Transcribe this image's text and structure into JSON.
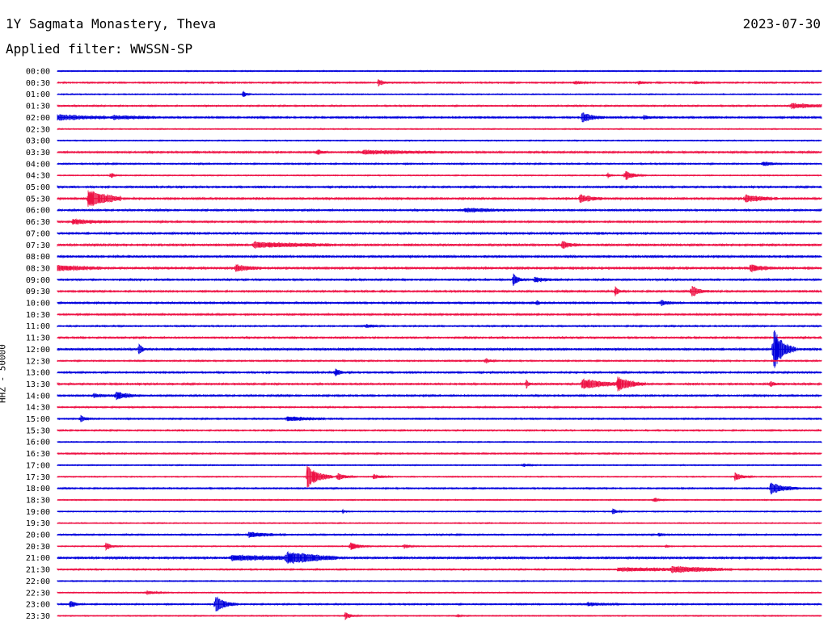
{
  "header": {
    "station": "1Y Sagmata Monastery, Theva",
    "date": "2023-07-30",
    "filter": "Applied filter: WWSSN-SP"
  },
  "colors": {
    "line_a": "#0000dd",
    "line_b": "#ee1144",
    "text": "#000000"
  },
  "chart_data": {
    "type": "line",
    "title": "1Y Sagmata Monastery, Theva",
    "ylabel": "HHZ - 50000",
    "grid": false,
    "y_tick_labels": [
      "00:00",
      "00:30",
      "01:00",
      "01:30",
      "02:00",
      "02:30",
      "03:00",
      "03:30",
      "04:00",
      "04:30",
      "05:00",
      "05:30",
      "06:00",
      "06:30",
      "07:00",
      "07:30",
      "08:00",
      "08:30",
      "09:00",
      "09:30",
      "10:00",
      "10:30",
      "11:00",
      "11:30",
      "12:00",
      "12:30",
      "13:00",
      "13:30",
      "14:00",
      "14:30",
      "15:00",
      "15:30",
      "16:00",
      "16:30",
      "17:00",
      "17:30",
      "18:00",
      "18:30",
      "19:00",
      "19:30",
      "20:00",
      "20:30",
      "21:00",
      "21:30",
      "22:00",
      "22:30",
      "23:00",
      "23:30"
    ],
    "x_range_minutes": [
      0,
      30
    ],
    "noise": [
      0.6,
      0.8,
      0.6,
      0.8,
      1.0,
      0.6,
      0.6,
      1.0,
      0.8,
      0.6,
      1.0,
      1.2,
      1.0,
      1.0,
      1.2,
      1.2,
      1.2,
      1.4,
      1.0,
      1.0,
      1.0,
      1.0,
      0.8,
      1.0,
      1.2,
      0.8,
      1.0,
      1.0,
      1.0,
      0.8,
      0.8,
      0.8,
      0.6,
      0.8,
      0.6,
      0.6,
      0.8,
      0.6,
      0.6,
      0.6,
      0.8,
      0.6,
      1.2,
      0.8,
      0.6,
      0.6,
      0.8,
      0.6
    ],
    "events": [
      [],
      [
        {
          "t": 12.6,
          "a": 4,
          "d": 0.2
        },
        {
          "t": 20.3,
          "a": 2,
          "d": 0.3
        },
        {
          "t": 22.8,
          "a": 2,
          "d": 0.2
        },
        {
          "t": 25.0,
          "a": 2,
          "d": 0.2
        }
      ],
      [
        {
          "t": 7.3,
          "a": 5,
          "d": 0.1
        }
      ],
      [
        {
          "t": 28.8,
          "a": 3,
          "d": 1.2
        }
      ],
      [
        {
          "t": 0.0,
          "a": 3,
          "d": 1.8
        },
        {
          "t": 2.2,
          "a": 2,
          "d": 1.5
        },
        {
          "t": 20.6,
          "a": 7,
          "d": 0.4
        },
        {
          "t": 23.0,
          "a": 2,
          "d": 0.4
        }
      ],
      [],
      [],
      [
        {
          "t": 10.2,
          "a": 4,
          "d": 0.2
        },
        {
          "t": 12.0,
          "a": 2,
          "d": 3.0
        }
      ],
      [
        {
          "t": 27.7,
          "a": 3,
          "d": 0.3
        }
      ],
      [
        {
          "t": 2.1,
          "a": 5,
          "d": 0.1
        },
        {
          "t": 22.3,
          "a": 7,
          "d": 0.3
        },
        {
          "t": 21.6,
          "a": 4,
          "d": 0.1
        }
      ],
      [],
      [
        {
          "t": 1.2,
          "a": 12,
          "d": 0.8
        },
        {
          "t": 20.5,
          "a": 5,
          "d": 0.5
        },
        {
          "t": 27.0,
          "a": 4,
          "d": 0.8
        }
      ],
      [
        {
          "t": 16.0,
          "a": 2,
          "d": 1.5
        }
      ],
      [
        {
          "t": 0.6,
          "a": 3,
          "d": 1.0
        }
      ],
      [],
      [
        {
          "t": 7.7,
          "a": 3,
          "d": 2.5
        },
        {
          "t": 19.8,
          "a": 5,
          "d": 0.3
        }
      ],
      [],
      [
        {
          "t": 0.0,
          "a": 3,
          "d": 1.2
        },
        {
          "t": 7.0,
          "a": 4,
          "d": 0.5
        },
        {
          "t": 27.2,
          "a": 4,
          "d": 0.5
        }
      ],
      [
        {
          "t": 17.9,
          "a": 8,
          "d": 0.2
        },
        {
          "t": 18.7,
          "a": 3,
          "d": 0.5
        }
      ],
      [
        {
          "t": 21.9,
          "a": 8,
          "d": 0.1
        },
        {
          "t": 24.9,
          "a": 7,
          "d": 0.3
        }
      ],
      [
        {
          "t": 18.8,
          "a": 4,
          "d": 0.1
        },
        {
          "t": 23.7,
          "a": 3,
          "d": 0.3
        }
      ],
      [],
      [
        {
          "t": 12.1,
          "a": 2,
          "d": 0.3
        }
      ],
      [],
      [
        {
          "t": 3.2,
          "a": 9,
          "d": 0.1
        },
        {
          "t": 28.1,
          "a": 28,
          "d": 0.4
        }
      ],
      [
        {
          "t": 16.8,
          "a": 3,
          "d": 0.2
        }
      ],
      [
        {
          "t": 10.9,
          "a": 5,
          "d": 0.2
        }
      ],
      [
        {
          "t": 18.4,
          "a": 6,
          "d": 0.1
        },
        {
          "t": 20.6,
          "a": 7,
          "d": 0.9
        },
        {
          "t": 22.0,
          "a": 9,
          "d": 0.6
        },
        {
          "t": 28.0,
          "a": 3,
          "d": 0.2
        }
      ],
      [
        {
          "t": 1.4,
          "a": 2,
          "d": 0.5
        },
        {
          "t": 2.3,
          "a": 5,
          "d": 0.5
        }
      ],
      [],
      [
        {
          "t": 0.9,
          "a": 4,
          "d": 0.2
        },
        {
          "t": 9.0,
          "a": 3,
          "d": 1.0
        }
      ],
      [],
      [],
      [],
      [
        {
          "t": 18.3,
          "a": 2,
          "d": 0.2
        }
      ],
      [
        {
          "t": 9.8,
          "a": 14,
          "d": 0.5
        },
        {
          "t": 11.0,
          "a": 5,
          "d": 0.3
        },
        {
          "t": 12.4,
          "a": 3,
          "d": 0.3
        },
        {
          "t": 26.6,
          "a": 5,
          "d": 0.3
        }
      ],
      [
        {
          "t": 28.0,
          "a": 7,
          "d": 0.6
        }
      ],
      [
        {
          "t": 23.4,
          "a": 3,
          "d": 0.2
        }
      ],
      [
        {
          "t": 11.2,
          "a": 2,
          "d": 0.1
        },
        {
          "t": 21.8,
          "a": 3,
          "d": 0.2
        }
      ],
      [],
      [
        {
          "t": 7.5,
          "a": 3,
          "d": 1.0
        },
        {
          "t": 23.6,
          "a": 2,
          "d": 0.2
        }
      ],
      [
        {
          "t": 1.9,
          "a": 5,
          "d": 0.2
        },
        {
          "t": 11.5,
          "a": 6,
          "d": 0.3
        },
        {
          "t": 13.6,
          "a": 3,
          "d": 0.2
        },
        {
          "t": 23.9,
          "a": 2,
          "d": 0.1
        }
      ],
      [
        {
          "t": 6.8,
          "a": 3,
          "d": 3.0
        },
        {
          "t": 9.0,
          "a": 6,
          "d": 1.5
        }
      ],
      [
        {
          "t": 22.0,
          "a": 2,
          "d": 4.0
        },
        {
          "t": 24.1,
          "a": 3,
          "d": 1.5
        }
      ],
      [],
      [
        {
          "t": 3.5,
          "a": 2,
          "d": 0.4
        }
      ],
      [
        {
          "t": 0.5,
          "a": 5,
          "d": 0.2
        },
        {
          "t": 6.2,
          "a": 10,
          "d": 0.4
        },
        {
          "t": 20.8,
          "a": 2,
          "d": 0.8
        }
      ],
      [
        {
          "t": 11.3,
          "a": 5,
          "d": 0.2
        },
        {
          "t": 15.7,
          "a": 2,
          "d": 0.1
        }
      ]
    ]
  }
}
